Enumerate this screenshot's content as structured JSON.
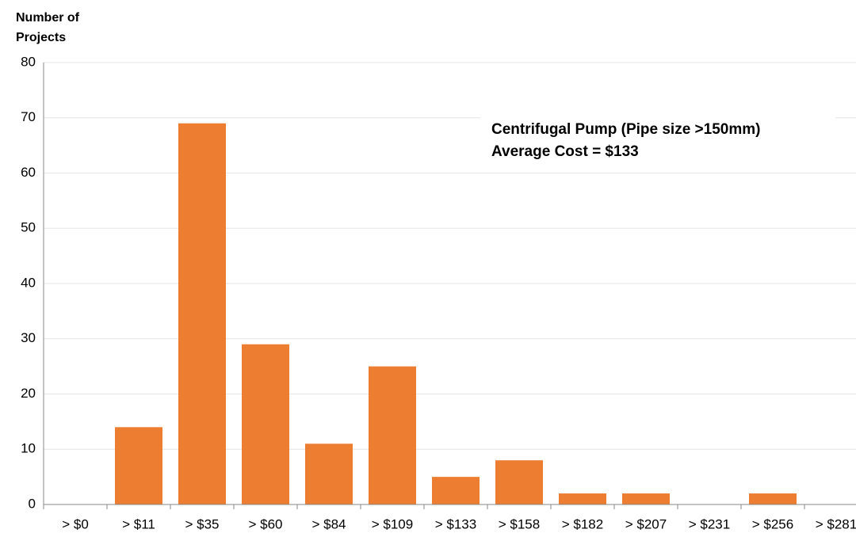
{
  "chart_data": {
    "type": "bar",
    "y_label": "Number of Projects",
    "annotations": [
      "Centrifugal Pump (Pipe size >150mm)",
      "Average Cost = $133"
    ],
    "categories": [
      "> $0",
      "> $11",
      "> $35",
      "> $60",
      "> $84",
      "> $109",
      "> $133",
      "> $158",
      "> $182",
      "> $207",
      "> $231",
      "> $256",
      "> $281"
    ],
    "values": [
      0,
      14,
      69,
      29,
      11,
      25,
      5,
      8,
      2,
      2,
      0,
      2,
      0
    ],
    "color": "#ed7d31",
    "ylim": [
      0,
      80
    ],
    "yticks": [
      0,
      10,
      20,
      30,
      40,
      50,
      60,
      70,
      80
    ],
    "grid": true
  }
}
